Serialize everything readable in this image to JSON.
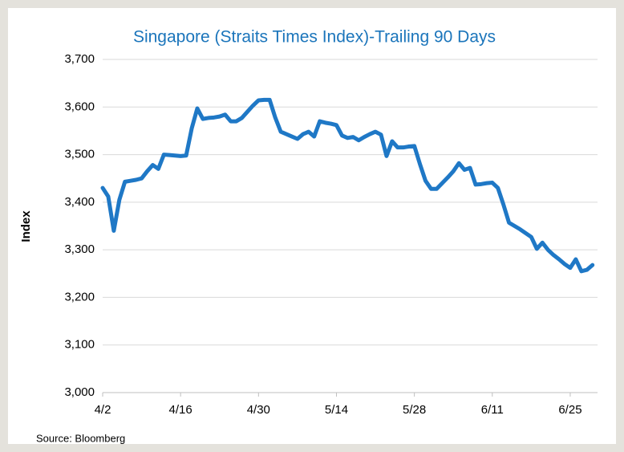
{
  "chart_data": {
    "type": "line",
    "title": "Singapore (Straits Times Index)-Trailing 90 Days",
    "y_label": "Index",
    "source": "Source: Bloomberg",
    "color": "#1f78c6",
    "grid": true,
    "ylim": [
      3000,
      3700
    ],
    "yticks": [
      {
        "value": 3000,
        "label": "3,000"
      },
      {
        "value": 3100,
        "label": "3,100"
      },
      {
        "value": 3200,
        "label": "3,200"
      },
      {
        "value": 3300,
        "label": "3,300"
      },
      {
        "value": 3400,
        "label": "3,400"
      },
      {
        "value": 3500,
        "label": "3,500"
      },
      {
        "value": 3600,
        "label": "3,600"
      },
      {
        "value": 3700,
        "label": "3,700"
      }
    ],
    "categories": [
      "4/2",
      null,
      null,
      null,
      null,
      null,
      null,
      null,
      null,
      null,
      null,
      null,
      null,
      null,
      "4/16",
      null,
      null,
      null,
      null,
      null,
      null,
      null,
      null,
      null,
      null,
      null,
      null,
      null,
      "4/30",
      null,
      null,
      null,
      null,
      null,
      null,
      null,
      null,
      null,
      null,
      null,
      null,
      null,
      "5/14",
      null,
      null,
      null,
      null,
      null,
      null,
      null,
      null,
      null,
      null,
      null,
      null,
      null,
      "5/28",
      null,
      null,
      null,
      null,
      null,
      null,
      null,
      null,
      null,
      null,
      null,
      null,
      null,
      "6/11",
      null,
      null,
      null,
      null,
      null,
      null,
      null,
      null,
      null,
      null,
      null,
      null,
      null,
      "6/25",
      null,
      null,
      null,
      null
    ],
    "values": [
      3430,
      3412,
      3340,
      3405,
      3443,
      3445,
      3447,
      3450,
      3465,
      3478,
      3470,
      3500,
      3499,
      3498,
      3497,
      3498,
      3555,
      3597,
      3575,
      3577,
      3578,
      3580,
      3584,
      3570,
      3570,
      3577,
      3590,
      3603,
      3614,
      3615,
      3615,
      3578,
      3548,
      3543,
      3538,
      3533,
      3543,
      3548,
      3538,
      3570,
      3567,
      3565,
      3562,
      3540,
      3535,
      3537,
      3530,
      3537,
      3543,
      3548,
      3542,
      3497,
      3528,
      3515,
      3515,
      3517,
      3518,
      3480,
      3445,
      3428,
      3428,
      3440,
      3452,
      3465,
      3482,
      3468,
      3472,
      3437,
      3438,
      3440,
      3441,
      3430,
      3395,
      3357,
      3350,
      3343,
      3335,
      3327,
      3302,
      3315,
      3300,
      3289,
      3280,
      3270,
      3262,
      3280,
      3255,
      3258,
      3268
    ]
  }
}
